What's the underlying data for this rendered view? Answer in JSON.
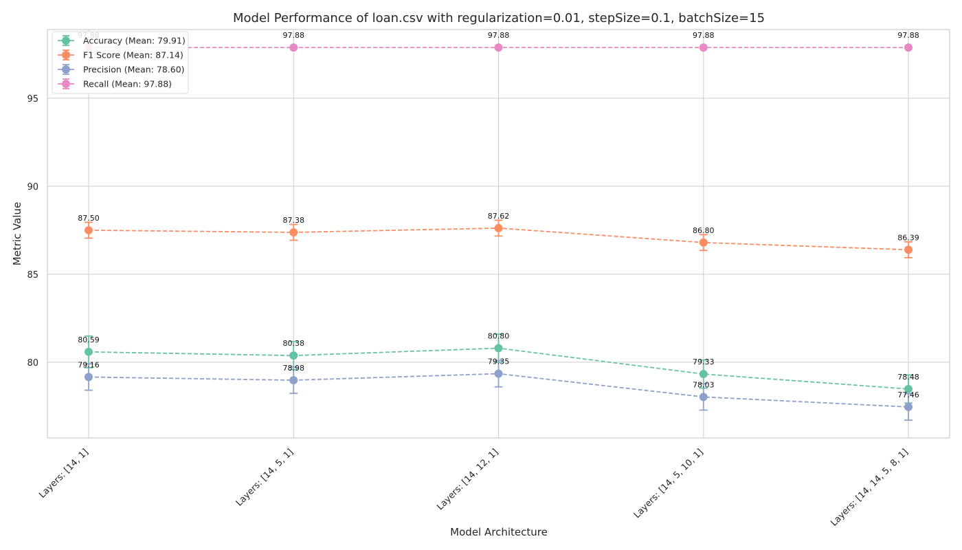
{
  "chart_data": {
    "type": "line",
    "title": "Model Performance of loan.csv with regularization=0.01, stepSize=0.1, batchSize=15",
    "xlabel": "Model Architecture",
    "ylabel": "Metric Value",
    "categories": [
      "Layers: [14, 1]",
      "Layers: [14, 5, 1]",
      "Layers: [14, 12, 1]",
      "Layers: [14, 5, 10, 1]",
      "Layers: [14, 14, 5, 8, 1]"
    ],
    "ylim": [
      75.7,
      98.9
    ],
    "yticks": [
      80,
      85,
      90,
      95
    ],
    "grid": true,
    "legend_position": "top-left",
    "series": [
      {
        "name": "Accuracy (Mean: 79.91)",
        "color": "#66c2a5",
        "values": [
          80.59,
          80.38,
          80.8,
          79.33,
          78.48
        ],
        "labels": [
          "80.59",
          "80.38",
          "80.80",
          "79.33",
          "78.48"
        ],
        "error": [
          0.9,
          0.8,
          0.8,
          0.8,
          0.8
        ]
      },
      {
        "name": "F1 Score (Mean: 87.14)",
        "color": "#fc8d62",
        "values": [
          87.5,
          87.38,
          87.62,
          86.8,
          86.39
        ],
        "labels": [
          "87.50",
          "87.38",
          "87.62",
          "86.80",
          "86.39"
        ],
        "error": [
          0.45,
          0.45,
          0.45,
          0.45,
          0.45
        ]
      },
      {
        "name": "Precision (Mean: 78.60)",
        "color": "#8da0cb",
        "values": [
          79.16,
          78.98,
          79.35,
          78.03,
          77.46
        ],
        "labels": [
          "79.16",
          "78.98",
          "79.35",
          "78.03",
          "77.46"
        ],
        "error": [
          0.75,
          0.75,
          0.75,
          0.75,
          0.75
        ]
      },
      {
        "name": "Recall (Mean: 97.88)",
        "color": "#e78ac3",
        "values": [
          97.88,
          97.88,
          97.88,
          97.88,
          97.88
        ],
        "labels": [
          "97.88",
          "97.88",
          "97.88",
          "97.88",
          "97.88"
        ],
        "error": [
          0,
          0,
          0,
          0,
          0
        ]
      }
    ]
  }
}
